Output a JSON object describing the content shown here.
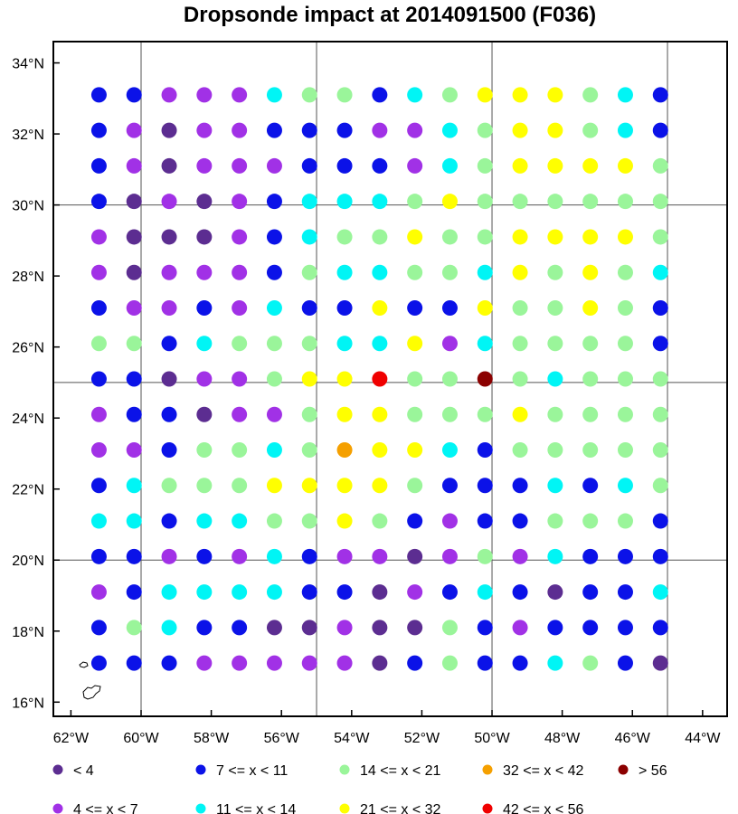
{
  "chart_data": {
    "type": "scatter",
    "title": "Dropsonde impact at 2014091500 (F036)",
    "xlim": [
      -62.5,
      -43.3
    ],
    "ylim": [
      15.6,
      34.6
    ],
    "x_tick_values": [
      -62,
      -60,
      -58,
      -56,
      -54,
      -52,
      -50,
      -48,
      -46,
      -44
    ],
    "x_tick_labels": [
      "62°W",
      "60°W",
      "58°W",
      "56°W",
      "54°W",
      "52°W",
      "50°W",
      "48°W",
      "46°W",
      "44°W"
    ],
    "y_tick_values": [
      16,
      18,
      20,
      22,
      24,
      26,
      28,
      30,
      32,
      34
    ],
    "y_tick_labels": [
      "16°N",
      "18°N",
      "20°N",
      "22°N",
      "24°N",
      "26°N",
      "28°N",
      "30°N",
      "32°N",
      "34°N"
    ],
    "grid_lines": {
      "lon": [
        -60,
        -55,
        -50,
        -45
      ],
      "lat": [
        20,
        25,
        30
      ]
    },
    "grid": true,
    "legend_position": "bottom",
    "x": [
      -61.2,
      -60.2,
      -59.2,
      -58.2,
      -57.2,
      -56.2,
      -55.2,
      -54.2,
      -53.2,
      -52.2,
      -51.2,
      -50.2,
      -49.2,
      -48.2,
      -47.2,
      -46.2,
      -45.2
    ],
    "y": [
      33.1,
      32.1,
      31.1,
      30.1,
      29.1,
      28.1,
      27.1,
      26.1,
      25.1,
      24.1,
      23.1,
      22.1,
      21.1,
      20.1,
      19.1,
      18.1,
      17.1
    ],
    "categories": [
      "<  4",
      "4 <= x <  7",
      "7 <= x < 11",
      "11 <= x < 14",
      "14 <= x < 21",
      "21 <= x < 32",
      "32 <= x < 42",
      "42 <= x < 56",
      "> 56"
    ],
    "category_colors": [
      "#5c2d91",
      "#a131e6",
      "#0b12e8",
      "#00f5f5",
      "#9af59a",
      "#ffff00",
      "#f5a000",
      "#f00000",
      "#8b0000"
    ],
    "legend_items": [
      {
        "label": "<  4",
        "color": "#5c2d91"
      },
      {
        "label": "7 <= x < 11",
        "color": "#0b12e8"
      },
      {
        "label": "14 <= x < 21",
        "color": "#9af59a"
      },
      {
        "label": "32 <= x < 42",
        "color": "#f5a000"
      },
      {
        "label": "> 56",
        "color": "#8b0000"
      },
      {
        "label": "4 <= x <  7",
        "color": "#a131e6"
      },
      {
        "label": "11 <= x < 14",
        "color": "#00f5f5"
      },
      {
        "label": "21 <= x < 32",
        "color": "#ffff00"
      },
      {
        "label": "42 <= x < 56",
        "color": "#f00000"
      }
    ],
    "grid_values": [
      [
        2,
        2,
        1,
        1,
        1,
        3,
        4,
        4,
        2,
        3,
        4,
        5,
        5,
        5,
        4,
        3,
        2
      ],
      [
        2,
        1,
        0,
        1,
        1,
        2,
        2,
        2,
        1,
        1,
        3,
        4,
        5,
        5,
        4,
        3,
        2
      ],
      [
        2,
        1,
        0,
        1,
        1,
        1,
        2,
        2,
        2,
        1,
        3,
        4,
        5,
        5,
        5,
        5,
        4
      ],
      [
        2,
        0,
        1,
        0,
        1,
        2,
        3,
        3,
        3,
        4,
        5,
        4,
        4,
        4,
        4,
        4,
        4
      ],
      [
        1,
        0,
        0,
        0,
        1,
        2,
        3,
        4,
        4,
        5,
        4,
        4,
        5,
        5,
        5,
        5,
        4
      ],
      [
        1,
        0,
        1,
        1,
        1,
        2,
        4,
        3,
        3,
        4,
        4,
        3,
        5,
        4,
        5,
        4,
        3
      ],
      [
        2,
        1,
        1,
        2,
        1,
        3,
        2,
        2,
        5,
        2,
        2,
        5,
        4,
        4,
        5,
        4,
        2
      ],
      [
        4,
        4,
        2,
        3,
        4,
        4,
        4,
        3,
        3,
        5,
        1,
        3,
        4,
        4,
        4,
        4,
        2
      ],
      [
        2,
        2,
        0,
        1,
        1,
        4,
        5,
        5,
        7,
        4,
        4,
        8,
        4,
        3,
        4,
        4,
        4
      ],
      [
        1,
        2,
        2,
        0,
        1,
        1,
        4,
        5,
        5,
        4,
        4,
        4,
        5,
        4,
        4,
        4,
        4
      ],
      [
        1,
        1,
        2,
        4,
        4,
        3,
        4,
        6,
        5,
        5,
        3,
        2,
        4,
        4,
        4,
        4,
        4
      ],
      [
        2,
        3,
        4,
        4,
        4,
        5,
        5,
        5,
        5,
        4,
        2,
        2,
        2,
        3,
        2,
        3,
        4
      ],
      [
        3,
        3,
        2,
        3,
        3,
        4,
        4,
        5,
        4,
        2,
        1,
        2,
        2,
        4,
        4,
        4,
        2
      ],
      [
        2,
        2,
        1,
        2,
        1,
        3,
        2,
        1,
        1,
        0,
        1,
        4,
        1,
        3,
        2,
        2,
        2
      ],
      [
        1,
        2,
        3,
        3,
        3,
        3,
        2,
        2,
        0,
        1,
        2,
        3,
        2,
        0,
        2,
        2,
        3
      ],
      [
        2,
        4,
        3,
        2,
        2,
        0,
        0,
        1,
        0,
        0,
        4,
        2,
        1,
        2,
        2,
        2,
        2
      ],
      [
        2,
        2,
        2,
        1,
        1,
        1,
        1,
        1,
        0,
        2,
        4,
        2,
        2,
        3,
        4,
        2,
        0
      ]
    ]
  }
}
